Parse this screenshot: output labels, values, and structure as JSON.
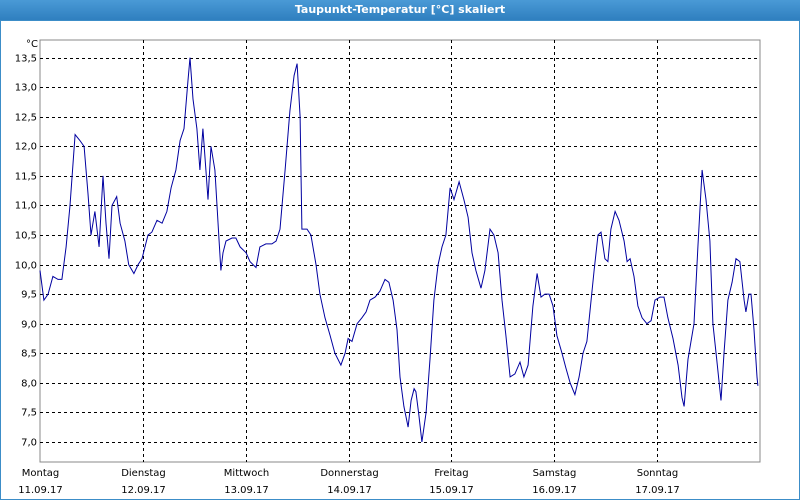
{
  "chart_data": {
    "type": "line",
    "title": "Taupunkt-Temperatur [°C] skaliert",
    "y_label": "°C",
    "color": "#0000a0",
    "grid": true,
    "xlim": [
      0,
      168
    ],
    "ylim": [
      6.66,
      13.8
    ],
    "xticks": [
      {
        "value": 0,
        "label": "Montag"
      },
      {
        "value": 24,
        "label": "Dienstag"
      },
      {
        "value": 48,
        "label": "Mittwoch"
      },
      {
        "value": 72,
        "label": "Donnerstag"
      },
      {
        "value": 96,
        "label": "Freitag"
      },
      {
        "value": 120,
        "label": "Samstag"
      },
      {
        "value": 144,
        "label": "Sonntag"
      }
    ],
    "xtick_dates": [
      "11.09.17",
      "12.09.17",
      "13.09.17",
      "14.09.17",
      "15.09.17",
      "16.09.17",
      "17.09.17"
    ],
    "yticks": [
      {
        "value": 7.0,
        "label": "7,0"
      },
      {
        "value": 7.5,
        "label": "7,5"
      },
      {
        "value": 8.0,
        "label": "8,0"
      },
      {
        "value": 8.5,
        "label": "8,5"
      },
      {
        "value": 9.0,
        "label": "9,0"
      },
      {
        "value": 9.5,
        "label": "9,5"
      },
      {
        "value": 10.0,
        "label": "10,0"
      },
      {
        "value": 10.5,
        "label": "10,5"
      },
      {
        "value": 11.0,
        "label": "11,0"
      },
      {
        "value": 11.5,
        "label": "11,5"
      },
      {
        "value": 12.0,
        "label": "12,0"
      },
      {
        "value": 12.5,
        "label": "12,5"
      },
      {
        "value": 13.0,
        "label": "13,0"
      },
      {
        "value": 13.5,
        "label": "13,5"
      }
    ],
    "x": [
      0,
      0.9,
      1.9,
      3.0,
      4.2,
      5.1,
      6.1,
      7.0,
      8.2,
      9.3,
      10.3,
      11.2,
      11.9,
      12.8,
      13.8,
      14.7,
      15.4,
      16.1,
      16.8,
      17.9,
      18.7,
      19.8,
      20.7,
      21.9,
      22.9,
      23.8,
      25.2,
      26.1,
      27.3,
      28.5,
      29.6,
      30.6,
      31.7,
      32.7,
      33.6,
      34.5,
      35.0,
      35.7,
      36.6,
      37.3,
      38.0,
      38.7,
      39.2,
      39.9,
      40.8,
      41.8,
      42.2,
      42.7,
      43.4,
      44.8,
      45.7,
      46.7,
      48.1,
      49.0,
      50.4,
      51.3,
      52.7,
      54.1,
      55.1,
      56.0,
      57.2,
      58.3,
      59.3,
      60.0,
      60.7,
      61.1,
      62.3,
      63.2,
      64.4,
      65.3,
      66.5,
      67.7,
      68.8,
      70.2,
      71.2,
      71.9,
      72.8,
      74.0,
      75.1,
      76.1,
      77.0,
      78.2,
      79.3,
      80.5,
      81.4,
      82.4,
      83.3,
      84.0,
      84.9,
      85.9,
      86.6,
      87.3,
      87.7,
      88.4,
      89.1,
      90.1,
      91.0,
      91.9,
      92.9,
      93.8,
      94.7,
      95.7,
      96.6,
      97.8,
      98.9,
      99.9,
      100.8,
      101.7,
      102.9,
      103.8,
      105.0,
      105.9,
      106.9,
      107.8,
      108.7,
      109.7,
      110.8,
      112.0,
      112.9,
      113.9,
      115.0,
      116.0,
      116.9,
      117.8,
      118.8,
      119.7,
      120.6,
      121.8,
      122.7,
      123.7,
      124.8,
      125.8,
      126.7,
      127.6,
      128.3,
      129.3,
      130.2,
      130.9,
      131.8,
      132.5,
      133.2,
      134.2,
      135.1,
      136.3,
      137.0,
      137.7,
      138.6,
      139.5,
      140.5,
      141.6,
      142.6,
      143.5,
      144.7,
      145.6,
      146.5,
      147.7,
      148.9,
      149.8,
      150.3,
      151.2,
      152.6,
      153.5,
      154.5,
      155.4,
      156.3,
      157.0,
      157.9,
      158.9,
      159.6,
      160.5,
      161.5,
      162.4,
      163.3,
      164.3,
      164.7,
      165.4,
      165.9,
      166.6,
      167.3,
      167.5
    ],
    "values": [
      9.9,
      9.4,
      9.5,
      9.8,
      9.75,
      9.75,
      10.3,
      11.0,
      12.2,
      12.1,
      12.0,
      11.2,
      10.5,
      10.9,
      10.3,
      11.5,
      10.7,
      10.1,
      11.0,
      11.15,
      10.7,
      10.4,
      10.0,
      9.85,
      10.0,
      10.1,
      10.5,
      10.55,
      10.75,
      10.7,
      10.9,
      11.3,
      11.6,
      12.1,
      12.3,
      13.1,
      13.5,
      12.8,
      12.3,
      11.6,
      12.3,
      11.6,
      11.1,
      12.0,
      11.6,
      10.4,
      9.9,
      10.2,
      10.4,
      10.45,
      10.45,
      10.3,
      10.2,
      10.05,
      9.95,
      10.3,
      10.35,
      10.35,
      10.4,
      10.6,
      11.6,
      12.6,
      13.2,
      13.4,
      12.5,
      10.6,
      10.6,
      10.5,
      10.0,
      9.5,
      9.1,
      8.8,
      8.5,
      8.3,
      8.5,
      8.75,
      8.7,
      9.0,
      9.1,
      9.2,
      9.4,
      9.45,
      9.55,
      9.75,
      9.7,
      9.4,
      8.9,
      8.1,
      7.6,
      7.25,
      7.7,
      7.9,
      7.85,
      7.45,
      7.0,
      7.5,
      8.4,
      9.4,
      10.0,
      10.3,
      10.5,
      11.3,
      11.1,
      11.4,
      11.1,
      10.8,
      10.2,
      9.9,
      9.6,
      9.9,
      10.6,
      10.5,
      10.2,
      9.4,
      8.8,
      8.1,
      8.15,
      8.35,
      8.1,
      8.3,
      9.3,
      9.85,
      9.45,
      9.5,
      9.5,
      9.3,
      8.8,
      8.5,
      8.25,
      8.0,
      7.8,
      8.1,
      8.5,
      8.7,
      9.2,
      9.9,
      10.5,
      10.55,
      10.1,
      10.05,
      10.6,
      10.9,
      10.75,
      10.4,
      10.05,
      10.1,
      9.8,
      9.3,
      9.1,
      9.0,
      9.05,
      9.4,
      9.45,
      9.45,
      9.1,
      8.75,
      8.3,
      7.75,
      7.6,
      8.4,
      9.0,
      10.3,
      11.6,
      11.1,
      10.4,
      9.0,
      8.4,
      7.7,
      8.5,
      9.4,
      9.7,
      10.1,
      10.05,
      9.4,
      9.2,
      9.5,
      9.5,
      8.9,
      8.1,
      7.95
    ]
  }
}
